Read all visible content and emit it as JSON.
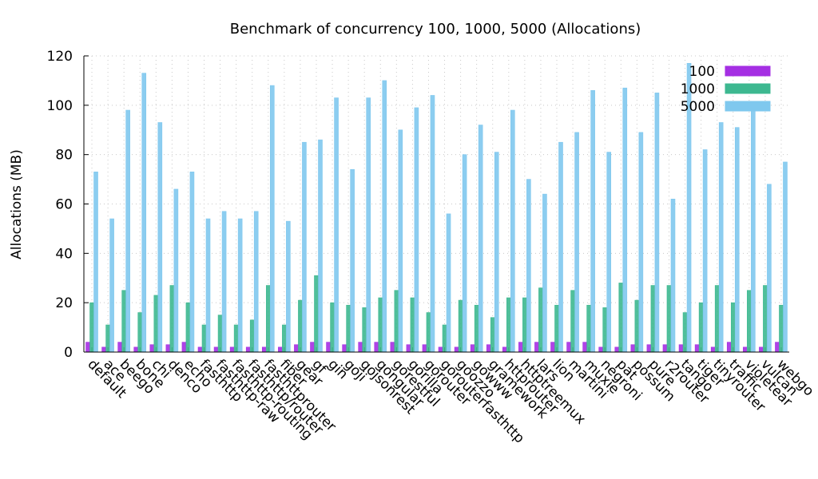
{
  "chart_data": {
    "type": "bar",
    "title": "Benchmark of concurrency 100, 1000, 5000 (Allocations)",
    "y_label": "Allocations (MB)",
    "categories": [
      "default",
      "ace",
      "beego",
      "bone",
      "chi",
      "denco",
      "echo",
      "fasthttp",
      "fasthttp-raw",
      "fasthttp-routing",
      "fasthttp/router",
      "fasthttprouter",
      "fiber",
      "gear",
      "gf",
      "gin",
      "goji",
      "gojsonrest",
      "gongular",
      "gorestful",
      "gorilla",
      "gorouter",
      "gorouterfasthttp",
      "goozzo",
      "gowww",
      "gramework",
      "httprouter",
      "httptreemux",
      "lars",
      "lion",
      "martini",
      "muxie",
      "negroni",
      "pat",
      "possum",
      "pure",
      "r2router",
      "tango",
      "tiger",
      "tinyrouter",
      "traffic",
      "violetear",
      "vulcan",
      "webgo"
    ],
    "series": [
      {
        "name": "100",
        "color": "#a52fe3",
        "values": [
          4,
          2,
          4,
          2,
          3,
          3,
          4,
          2,
          2,
          2,
          2,
          2,
          2,
          3,
          4,
          4,
          3,
          4,
          4,
          4,
          3,
          3,
          2,
          2,
          3,
          3,
          2,
          4,
          4,
          4,
          4,
          4,
          2,
          2,
          3,
          3,
          3,
          3,
          3,
          2,
          4,
          2,
          2,
          4
        ]
      },
      {
        "name": "1000",
        "color": "#3db890",
        "values": [
          20,
          11,
          25,
          16,
          23,
          27,
          20,
          11,
          15,
          11,
          13,
          27,
          11,
          21,
          31,
          20,
          19,
          18,
          22,
          25,
          22,
          16,
          11,
          21,
          19,
          14,
          22,
          22,
          26,
          19,
          25,
          19,
          18,
          28,
          21,
          27,
          27,
          16,
          20,
          27,
          20,
          25,
          27,
          19
        ]
      },
      {
        "name": "5000",
        "color": "#7fc8ee",
        "values": [
          73,
          54,
          98,
          113,
          93,
          66,
          73,
          54,
          57,
          54,
          57,
          108,
          53,
          85,
          86,
          103,
          74,
          103,
          110,
          90,
          99,
          104,
          56,
          80,
          92,
          81,
          98,
          70,
          64,
          85,
          89,
          106,
          81,
          107,
          89,
          105,
          62,
          117,
          82,
          93,
          91,
          99,
          68,
          77
        ]
      }
    ],
    "ylim": [
      0,
      120
    ],
    "yticks": [
      0,
      20,
      40,
      60,
      80,
      100,
      120
    ],
    "grid": true,
    "legend": "upper right"
  }
}
